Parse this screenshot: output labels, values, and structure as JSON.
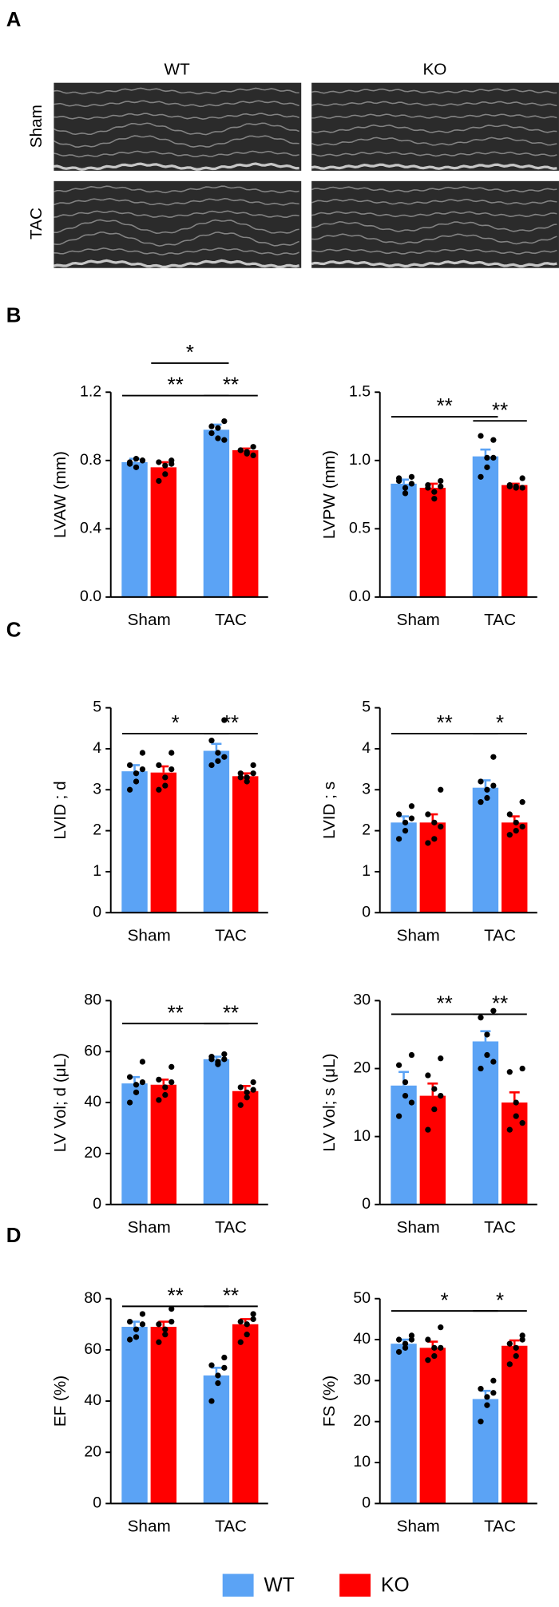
{
  "panels": [
    "A",
    "B",
    "C",
    "D"
  ],
  "images": {
    "columns": [
      "WT",
      "KO"
    ],
    "rows": [
      "Sham",
      "TAC"
    ]
  },
  "chart_data": [
    {
      "type": "bar",
      "ylabel": "LVAW (mm)",
      "categories": [
        "Sham",
        "TAC"
      ],
      "ylim": [
        0,
        1.2
      ],
      "yticks": [
        {
          "value": 0,
          "label": "0.0"
        },
        0.4,
        0.8,
        1.2
      ],
      "series": [
        {
          "name": "WT",
          "color": "#5ba3f5",
          "values": [
            0.79,
            0.98
          ],
          "errors": [
            0.02,
            0.03
          ],
          "points": [
            [
              0.8,
              0.78,
              0.81,
              0.76,
              0.79,
              0.8
            ],
            [
              1.03,
              0.96,
              0.99,
              0.93,
              1.0,
              0.92
            ]
          ]
        },
        {
          "name": "KO",
          "color": "#ff0000",
          "values": [
            0.76,
            0.86
          ],
          "errors": [
            0.03,
            0.01
          ],
          "points": [
            [
              0.8,
              0.79,
              0.77,
              0.72,
              0.68,
              0.78
            ],
            [
              0.88,
              0.86,
              0.85,
              0.84,
              0.86,
              0.83
            ]
          ]
        }
      ],
      "annotations": [
        {
          "text": "**",
          "between": [
            [
              "Sham",
              "WT"
            ],
            [
              "TAC",
              "WT"
            ]
          ],
          "y": 1.18
        },
        {
          "text": "*",
          "between": [
            [
              "Sham",
              "KO"
            ],
            [
              "TAC",
              "WT"
            ]
          ],
          "y": 1.37
        },
        {
          "text": "**",
          "between": [
            [
              "TAC",
              "WT"
            ],
            [
              "TAC",
              "KO"
            ]
          ],
          "y": 1.18
        }
      ]
    },
    {
      "type": "bar",
      "ylabel": "LVPW (mm)",
      "categories": [
        "Sham",
        "TAC"
      ],
      "ylim": [
        0,
        1.5
      ],
      "yticks": [
        {
          "value": 0,
          "label": "0.0"
        },
        0.5,
        {
          "value": 1,
          "label": "1.0"
        },
        1.5
      ],
      "series": [
        {
          "name": "WT",
          "color": "#5ba3f5",
          "values": [
            0.83,
            1.03
          ],
          "errors": [
            0.03,
            0.05
          ],
          "points": [
            [
              0.88,
              0.85,
              0.8,
              0.76,
              0.87,
              0.83
            ],
            [
              1.15,
              1.18,
              1.02,
              0.95,
              0.88,
              1.02
            ]
          ]
        },
        {
          "name": "KO",
          "color": "#ff0000",
          "values": [
            0.8,
            0.82
          ],
          "errors": [
            0.03,
            0.01
          ],
          "points": [
            [
              0.85,
              0.82,
              0.77,
              0.72,
              0.8,
              0.81
            ],
            [
              0.87,
              0.82,
              0.8,
              0.81,
              0.81,
              0.8
            ]
          ]
        }
      ],
      "annotations": [
        {
          "text": "**",
          "between": [
            [
              "Sham",
              "WT"
            ],
            [
              "TAC",
              "WT"
            ]
          ],
          "y": 1.32
        },
        {
          "text": "**",
          "between": [
            [
              "TAC",
              "WT"
            ],
            [
              "TAC",
              "KO"
            ]
          ],
          "y": 1.29
        }
      ]
    },
    {
      "type": "bar",
      "ylabel": "LVID ; d",
      "categories": [
        "Sham",
        "TAC"
      ],
      "ylim": [
        0,
        5
      ],
      "yticks": [
        0,
        1,
        2,
        3,
        4,
        5
      ],
      "series": [
        {
          "name": "WT",
          "color": "#5ba3f5",
          "values": [
            3.45,
            3.95
          ],
          "errors": [
            0.15,
            0.17
          ],
          "points": [
            [
              3.9,
              3.6,
              3.4,
              3.2,
              3.0,
              3.5
            ],
            [
              4.7,
              4.2,
              3.9,
              3.7,
              3.6,
              3.8
            ]
          ]
        },
        {
          "name": "KO",
          "color": "#ff0000",
          "values": [
            3.42,
            3.33
          ],
          "errors": [
            0.15,
            0.07
          ],
          "points": [
            [
              3.9,
              3.6,
              3.3,
              3.1,
              3.0,
              3.5
            ],
            [
              3.6,
              3.4,
              3.3,
              3.2,
              3.3,
              3.4
            ]
          ]
        }
      ],
      "annotations": [
        {
          "text": "*",
          "between": [
            [
              "Sham",
              "WT"
            ],
            [
              "TAC",
              "WT"
            ]
          ],
          "y": 4.37
        },
        {
          "text": "**",
          "between": [
            [
              "TAC",
              "WT"
            ],
            [
              "TAC",
              "KO"
            ]
          ],
          "y": 4.37
        }
      ]
    },
    {
      "type": "bar",
      "ylabel": "LVID ; s",
      "categories": [
        "Sham",
        "TAC"
      ],
      "ylim": [
        0,
        5
      ],
      "yticks": [
        0,
        1,
        2,
        3,
        4,
        5
      ],
      "series": [
        {
          "name": "WT",
          "color": "#5ba3f5",
          "values": [
            2.2,
            3.05
          ],
          "errors": [
            0.15,
            0.18
          ],
          "points": [
            [
              2.6,
              2.4,
              2.2,
              2.0,
              1.8,
              2.3
            ],
            [
              3.8,
              3.2,
              3.0,
              2.8,
              2.7,
              3.1
            ]
          ]
        },
        {
          "name": "KO",
          "color": "#ff0000",
          "values": [
            2.2,
            2.2
          ],
          "errors": [
            0.2,
            0.15
          ],
          "points": [
            [
              3.0,
              2.4,
              2.2,
              1.8,
              1.7,
              2.1
            ],
            [
              2.7,
              2.4,
              2.2,
              2.0,
              1.9,
              2.1
            ]
          ]
        }
      ],
      "annotations": [
        {
          "text": "**",
          "between": [
            [
              "Sham",
              "WT"
            ],
            [
              "TAC",
              "WT"
            ]
          ],
          "y": 4.37
        },
        {
          "text": "*",
          "between": [
            [
              "TAC",
              "WT"
            ],
            [
              "TAC",
              "KO"
            ]
          ],
          "y": 4.37
        }
      ]
    },
    {
      "type": "bar",
      "ylabel": "LV Vol; d (μL)",
      "categories": [
        "Sham",
        "TAC"
      ],
      "ylim": [
        0,
        80
      ],
      "yticks": [
        0,
        20,
        40,
        60,
        80
      ],
      "series": [
        {
          "name": "WT",
          "color": "#5ba3f5",
          "values": [
            47.5,
            57
          ],
          "errors": [
            2.5,
            1
          ],
          "points": [
            [
              56,
              50,
              47,
              44,
              40,
              48
            ],
            [
              59,
              57,
              56,
              55,
              58,
              57
            ]
          ]
        },
        {
          "name": "KO",
          "color": "#ff0000",
          "values": [
            47,
            44.5
          ],
          "errors": [
            2,
            2
          ],
          "points": [
            [
              54,
              49,
              46,
              43,
              41,
              48
            ],
            [
              48,
              46,
              44,
              42,
              39,
              45
            ]
          ]
        }
      ],
      "annotations": [
        {
          "text": "**",
          "between": [
            [
              "Sham",
              "WT"
            ],
            [
              "TAC",
              "WT"
            ]
          ],
          "y": 71
        },
        {
          "text": "**",
          "between": [
            [
              "TAC",
              "WT"
            ],
            [
              "TAC",
              "KO"
            ]
          ],
          "y": 71
        }
      ]
    },
    {
      "type": "bar",
      "ylabel": "LV Vol; s (μL)",
      "categories": [
        "Sham",
        "TAC"
      ],
      "ylim": [
        0,
        30
      ],
      "yticks": [
        0,
        10,
        20,
        30
      ],
      "series": [
        {
          "name": "WT",
          "color": "#5ba3f5",
          "values": [
            17.5,
            24
          ],
          "errors": [
            2,
            1.5
          ],
          "points": [
            [
              22,
              20.5,
              18,
              16,
              13,
              15
            ],
            [
              28.5,
              27.5,
              25,
              22,
              20,
              21
            ]
          ]
        },
        {
          "name": "KO",
          "color": "#ff0000",
          "values": [
            16,
            15
          ],
          "errors": [
            1.8,
            1.5
          ],
          "points": [
            [
              21.5,
              19,
              17,
              14,
              11,
              16
            ],
            [
              20,
              19.5,
              15,
              13,
              11,
              12
            ]
          ]
        }
      ],
      "annotations": [
        {
          "text": "**",
          "between": [
            [
              "Sham",
              "WT"
            ],
            [
              "TAC",
              "WT"
            ]
          ],
          "y": 28
        },
        {
          "text": "**",
          "between": [
            [
              "TAC",
              "WT"
            ],
            [
              "TAC",
              "KO"
            ]
          ],
          "y": 28
        }
      ]
    },
    {
      "type": "bar",
      "ylabel": "EF (%)",
      "categories": [
        "Sham",
        "TAC"
      ],
      "ylim": [
        0,
        80
      ],
      "yticks": [
        0,
        20,
        40,
        60,
        80
      ],
      "series": [
        {
          "name": "WT",
          "color": "#5ba3f5",
          "values": [
            69,
            50
          ],
          "errors": [
            2,
            3
          ],
          "points": [
            [
              74,
              71,
              68,
              65,
              64,
              70
            ],
            [
              57,
              54,
              50,
              47,
              40,
              53
            ]
          ]
        },
        {
          "name": "KO",
          "color": "#ff0000",
          "values": [
            69,
            70
          ],
          "errors": [
            2,
            2
          ],
          "points": [
            [
              76,
              70,
              68,
              66,
              63,
              71
            ],
            [
              74,
              71,
              70,
              66,
              63,
              72
            ]
          ]
        }
      ],
      "annotations": [
        {
          "text": "**",
          "between": [
            [
              "Sham",
              "WT"
            ],
            [
              "TAC",
              "WT"
            ]
          ],
          "y": 77
        },
        {
          "text": "**",
          "between": [
            [
              "TAC",
              "WT"
            ],
            [
              "TAC",
              "KO"
            ]
          ],
          "y": 77
        }
      ]
    },
    {
      "type": "bar",
      "ylabel": "FS (%)",
      "categories": [
        "Sham",
        "TAC"
      ],
      "ylim": [
        0,
        50
      ],
      "yticks": [
        0,
        10,
        20,
        30,
        40,
        50
      ],
      "series": [
        {
          "name": "WT",
          "color": "#5ba3f5",
          "values": [
            39,
            25.5
          ],
          "errors": [
            1,
            2
          ],
          "points": [
            [
              41,
              40,
              39,
              38,
              37,
              40
            ],
            [
              30,
              28,
              26,
              24,
              20,
              27
            ]
          ]
        },
        {
          "name": "KO",
          "color": "#ff0000",
          "values": [
            38,
            38.5
          ],
          "errors": [
            1.5,
            1.3
          ],
          "points": [
            [
              43,
              40,
              38,
              36,
              35,
              38
            ],
            [
              41,
              39,
              38,
              36,
              34,
              40
            ]
          ]
        }
      ],
      "annotations": [
        {
          "text": "*",
          "between": [
            [
              "Sham",
              "WT"
            ],
            [
              "TAC",
              "WT"
            ]
          ],
          "y": 47
        },
        {
          "text": "*",
          "between": [
            [
              "TAC",
              "WT"
            ],
            [
              "TAC",
              "KO"
            ]
          ],
          "y": 47
        }
      ]
    }
  ]
}
